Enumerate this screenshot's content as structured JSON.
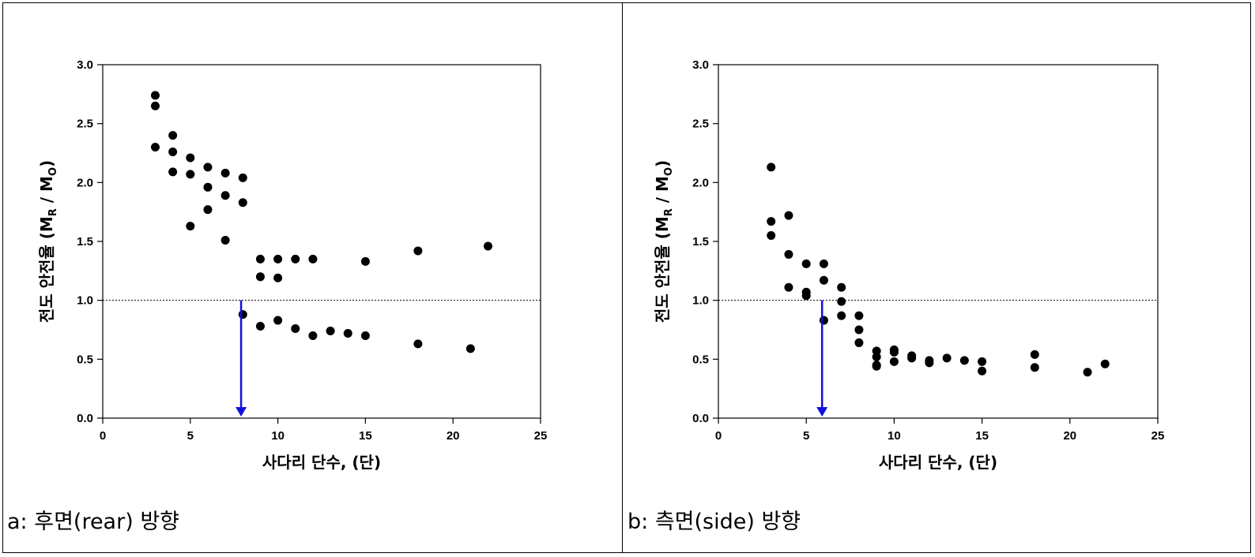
{
  "captions": {
    "a": "a: 후면(rear) 방향",
    "b": "b: 측면(side) 방향"
  },
  "colors": {
    "points": "#000000",
    "arrow": "#1010e0",
    "reference": "#000000"
  },
  "chart_data": [
    {
      "type": "scatter",
      "xlabel": "사다리 단수, (단)",
      "ylabel": "전도 안전율 (M_R / M_O)",
      "ylabel_main": "전도 안전율 (M",
      "ylabel_sub1": "R",
      "ylabel_mid": " / M",
      "ylabel_sub2": "O",
      "ylabel_end": ")",
      "xlim": [
        0,
        25
      ],
      "ylim": [
        0,
        3.0
      ],
      "xticks": [
        0,
        5,
        10,
        15,
        20,
        25
      ],
      "yticks": [
        "0.0",
        "0.5",
        "1.0",
        "1.5",
        "2.0",
        "2.5",
        "3.0"
      ],
      "reference_line_y": 1.0,
      "arrow": {
        "x": 7.9,
        "from_y": 1.0,
        "to_y": 0.0
      },
      "points": [
        [
          3,
          2.74
        ],
        [
          3,
          2.65
        ],
        [
          3,
          2.3
        ],
        [
          4,
          2.4
        ],
        [
          4,
          2.26
        ],
        [
          4,
          2.09
        ],
        [
          5,
          2.21
        ],
        [
          5,
          2.07
        ],
        [
          5,
          1.63
        ],
        [
          6,
          2.13
        ],
        [
          6,
          1.96
        ],
        [
          6,
          1.77
        ],
        [
          7,
          2.08
        ],
        [
          7,
          1.89
        ],
        [
          7,
          1.51
        ],
        [
          8,
          2.04
        ],
        [
          8,
          1.83
        ],
        [
          8,
          0.88
        ],
        [
          9,
          1.35
        ],
        [
          9,
          1.2
        ],
        [
          9,
          0.78
        ],
        [
          10,
          1.35
        ],
        [
          10,
          1.19
        ],
        [
          10,
          0.83
        ],
        [
          11,
          1.35
        ],
        [
          11,
          0.76
        ],
        [
          12,
          1.35
        ],
        [
          12,
          0.7
        ],
        [
          13,
          0.74
        ],
        [
          14,
          0.72
        ],
        [
          15,
          1.33
        ],
        [
          15,
          0.7
        ],
        [
          18,
          1.42
        ],
        [
          18,
          0.63
        ],
        [
          21,
          0.59
        ],
        [
          22,
          1.46
        ]
      ]
    },
    {
      "type": "scatter",
      "xlabel": "사다리 단수, (단)",
      "ylabel": "전도 안전율 (M_R / M_O)",
      "ylabel_main": "전도 안전율 (M",
      "ylabel_sub1": "R",
      "ylabel_mid": " / M",
      "ylabel_sub2": "O",
      "ylabel_end": ")",
      "xlim": [
        0,
        25
      ],
      "ylim": [
        0,
        3.0
      ],
      "xticks": [
        0,
        5,
        10,
        15,
        20,
        25
      ],
      "yticks": [
        "0.0",
        "0.5",
        "1.0",
        "1.5",
        "2.0",
        "2.5",
        "3.0"
      ],
      "reference_line_y": 1.0,
      "arrow": {
        "x": 5.9,
        "from_y": 1.0,
        "to_y": 0.0
      },
      "points": [
        [
          3,
          2.13
        ],
        [
          3,
          1.67
        ],
        [
          3,
          1.55
        ],
        [
          4,
          1.72
        ],
        [
          4,
          1.39
        ],
        [
          4,
          1.11
        ],
        [
          5,
          1.31
        ],
        [
          5,
          1.07
        ],
        [
          5,
          1.04
        ],
        [
          6,
          1.31
        ],
        [
          6,
          1.17
        ],
        [
          6,
          0.83
        ],
        [
          7,
          1.11
        ],
        [
          7,
          0.99
        ],
        [
          7,
          0.87
        ],
        [
          8,
          0.87
        ],
        [
          8,
          0.75
        ],
        [
          8,
          0.64
        ],
        [
          9,
          0.57
        ],
        [
          9,
          0.52
        ],
        [
          9,
          0.45
        ],
        [
          9,
          0.44
        ],
        [
          10,
          0.58
        ],
        [
          10,
          0.56
        ],
        [
          10,
          0.48
        ],
        [
          11,
          0.53
        ],
        [
          11,
          0.51
        ],
        [
          12,
          0.49
        ],
        [
          12,
          0.47
        ],
        [
          13,
          0.51
        ],
        [
          14,
          0.49
        ],
        [
          15,
          0.48
        ],
        [
          15,
          0.4
        ],
        [
          18,
          0.54
        ],
        [
          18,
          0.43
        ],
        [
          21,
          0.39
        ],
        [
          22,
          0.46
        ]
      ]
    }
  ]
}
